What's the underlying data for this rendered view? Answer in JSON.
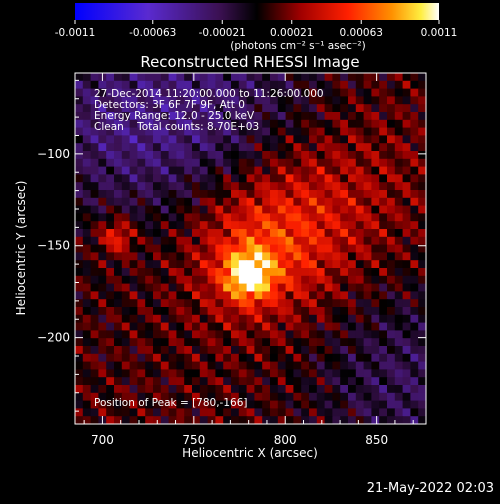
{
  "colorbar": {
    "tick_labels": [
      "-0.0011",
      "-0.00063",
      "-0.00021",
      "0.00021",
      "0.00063",
      "0.0011"
    ],
    "tick_values": [
      -0.0011,
      -0.00063,
      -0.00021,
      0.00021,
      0.00063,
      0.0011
    ],
    "range": [
      -0.0011,
      0.0011
    ],
    "units_label": "(photons cm⁻² s⁻¹ asec⁻²)"
  },
  "chart_data": {
    "type": "heatmap",
    "title": "Reconstructed RHESSI Image",
    "xlabel": "Heliocentric X (arcsec)",
    "ylabel": "Heliocentric Y (arcsec)",
    "xlim": [
      685,
      877
    ],
    "ylim": [
      -247,
      -56
    ],
    "x_ticks": [
      700,
      750,
      800,
      850
    ],
    "y_ticks": [
      -100,
      -150,
      -200
    ],
    "x_tick_labels": [
      "700",
      "750",
      "800",
      "850"
    ],
    "y_tick_labels": [
      "−100",
      "−150",
      "−200"
    ],
    "peak": [
      780,
      -166
    ],
    "info_lines": [
      "27-Dec-2014 11:20:00.000 to 11:26:00.000",
      "Detectors: 3F 6F 7F 9F, Att 0",
      "Energy Range: 12.0 - 25.0 keV",
      "Clean    Total counts: 8.70E+03"
    ],
    "peak_label": "Position of Peak = [780,-166]",
    "colormap": "blue-purple-black-red-orange-yellow-white"
  },
  "footer": {
    "timestamp": "21-May-2022 02:03"
  }
}
